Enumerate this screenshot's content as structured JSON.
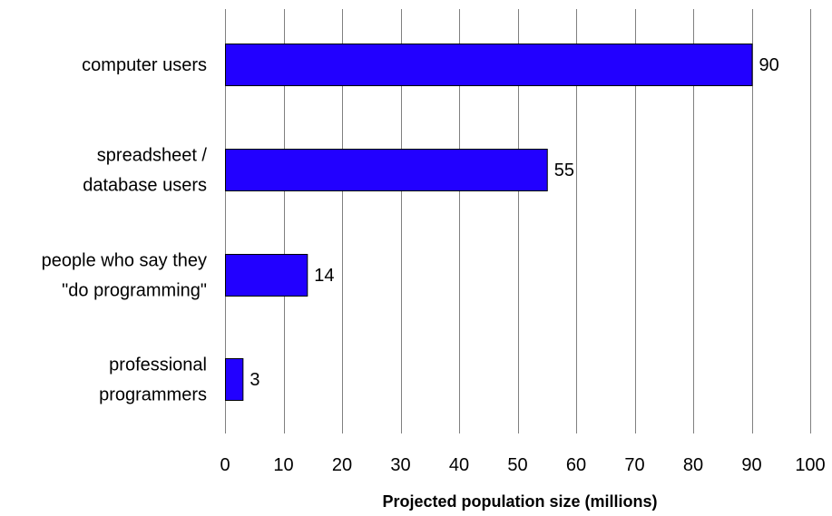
{
  "chart_data": {
    "type": "bar",
    "orientation": "horizontal",
    "title": "",
    "xlabel": "Projected population size (millions)",
    "ylabel": "",
    "categories": [
      [
        "computer users"
      ],
      [
        "spreadsheet /",
        "database users"
      ],
      [
        "people who say they",
        "\"do programming\""
      ],
      [
        "professional",
        "programmers"
      ]
    ],
    "values": [
      90,
      55,
      14,
      3
    ],
    "xlim": [
      0,
      100
    ],
    "xticks": [
      "0",
      "10",
      "20",
      "30",
      "40",
      "50",
      "60",
      "70",
      "80",
      "90",
      "100"
    ],
    "grid": "vertical",
    "legend": "none",
    "colors": {
      "bar_fill": "#2200ff",
      "bar_stroke": "#000000",
      "grid": "#808080",
      "text": "#000000"
    }
  }
}
